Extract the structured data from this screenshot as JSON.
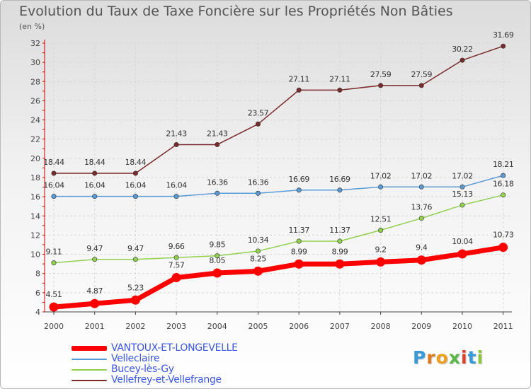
{
  "title": "Evolution du Taux de Taxe Foncière sur les Propriétés Non Bâties",
  "unit": "(en %)",
  "logo": {
    "text": "Proxiti",
    "letters": [
      "P",
      "r",
      "o",
      "x",
      "i",
      "t",
      "i"
    ],
    "colors": [
      "#3a9ad9",
      "#e07a1c",
      "#f0a020",
      "#58b848",
      "#e0402a",
      "#3a9ad9",
      "#8cc63f"
    ]
  },
  "chart_data": {
    "type": "line",
    "title": "Evolution du Taux de Taxe Foncière sur les Propriétés Non Bâties",
    "ylabel": "(en %)",
    "x": [
      "2000",
      "2001",
      "2002",
      "2003",
      "2004",
      "2005",
      "2006",
      "2007",
      "2008",
      "2009",
      "2010",
      "2011"
    ],
    "ylim": [
      4,
      32
    ],
    "yticks": [
      4,
      6,
      8,
      10,
      12,
      14,
      16,
      18,
      20,
      22,
      24,
      26,
      28,
      30,
      32
    ],
    "grid": true,
    "legend_position": "bottom-left",
    "series": [
      {
        "name": "VANTOUX-ET-LONGEVELLE",
        "color": "#ff0000",
        "values": [
          4.51,
          4.87,
          5.23,
          7.57,
          8.05,
          8.25,
          8.99,
          8.99,
          9.2,
          9.4,
          10.04,
          10.73
        ],
        "labels": [
          "4.51",
          "4.87",
          "5.23",
          "7.57",
          "8.05",
          "8.25",
          "8.99",
          "8.99",
          "9.2",
          "9.4",
          "10.04",
          "10.73"
        ]
      },
      {
        "name": "Velleclaire",
        "color": "#5b9bd5",
        "values": [
          16.04,
          16.04,
          16.04,
          16.04,
          16.36,
          16.36,
          16.69,
          16.69,
          17.02,
          17.02,
          17.02,
          18.21
        ],
        "labels": [
          "16.04",
          "16.04",
          "16.04",
          "16.04",
          "16.36",
          "16.36",
          "16.69",
          "16.69",
          "17.02",
          "17.02",
          "17.02",
          "18.21"
        ]
      },
      {
        "name": "Bucey-lès-Gy",
        "color": "#92d050",
        "values": [
          9.11,
          9.47,
          9.47,
          9.66,
          9.85,
          10.34,
          11.37,
          11.37,
          12.51,
          13.76,
          15.13,
          16.18
        ],
        "labels": [
          "9.11",
          "9.47",
          "9.47",
          "9.66",
          "9.85",
          "10.34",
          "11.37",
          "11.37",
          "12.51",
          "13.76",
          "15.13",
          "16.18"
        ]
      },
      {
        "name": "Vellefrey-et-Vellefrange",
        "color": "#7a2b2b",
        "values": [
          18.44,
          18.44,
          18.44,
          21.43,
          21.43,
          23.57,
          27.11,
          27.11,
          27.59,
          27.59,
          30.22,
          31.69
        ],
        "labels": [
          "18.44",
          "18.44",
          "18.44",
          "21.43",
          "21.43",
          "23.57",
          "27.11",
          "27.11",
          "27.59",
          "27.59",
          "30.22",
          "31.69"
        ]
      }
    ]
  }
}
